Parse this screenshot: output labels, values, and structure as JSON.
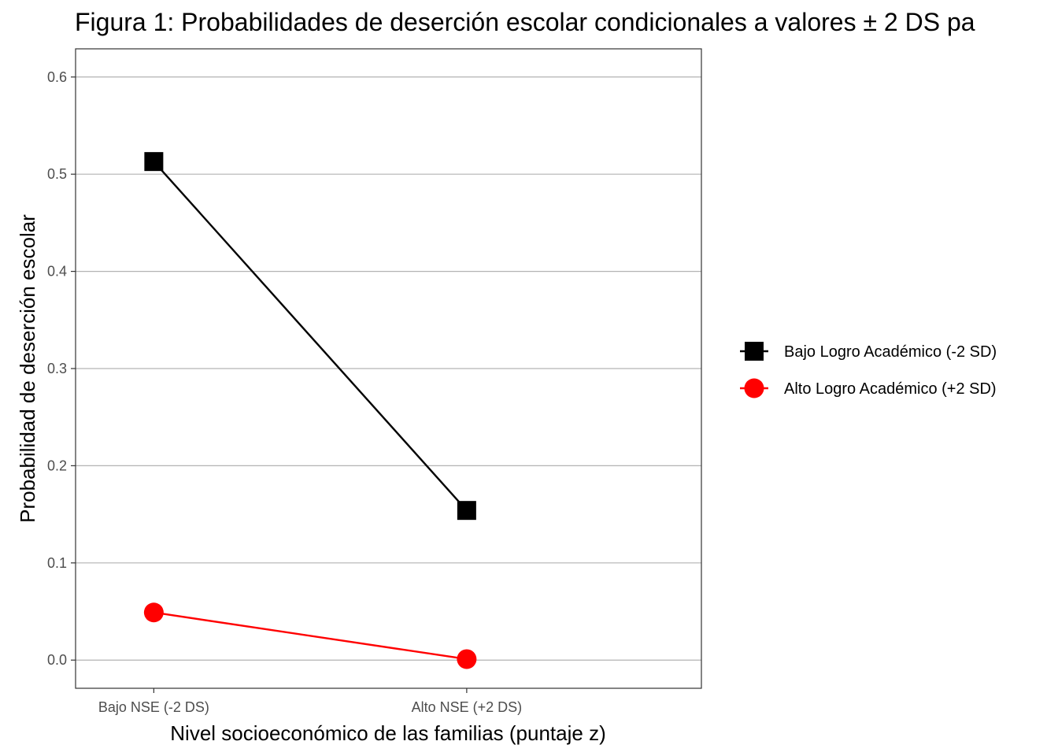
{
  "chart_data": {
    "type": "line",
    "title": "Figura 1: Probabilidades de deserción escolar condicionales a valores ± 2 DS pa",
    "xlabel": "Nivel socioeconómico de las familias (puntaje z)",
    "ylabel": "Probabilidad de deserción escolar",
    "categories": [
      "Bajo NSE (-2 DS)",
      "Alto NSE (+2 DS)"
    ],
    "y_ticks": [
      "0.0",
      "0.1",
      "0.2",
      "0.3",
      "0.4",
      "0.5",
      "0.6"
    ],
    "ylim": [
      -0.029,
      0.629
    ],
    "grid": "horizontal",
    "legend_position": "right",
    "series": [
      {
        "name": "Bajo Logro Académico (-2 SD)",
        "marker": "square",
        "color": "#000000",
        "values": [
          0.513,
          0.154
        ]
      },
      {
        "name": "Alto Logro Académico (+2 SD)",
        "marker": "circle",
        "color": "#ff0000",
        "values": [
          0.049,
          0.001
        ]
      }
    ]
  }
}
